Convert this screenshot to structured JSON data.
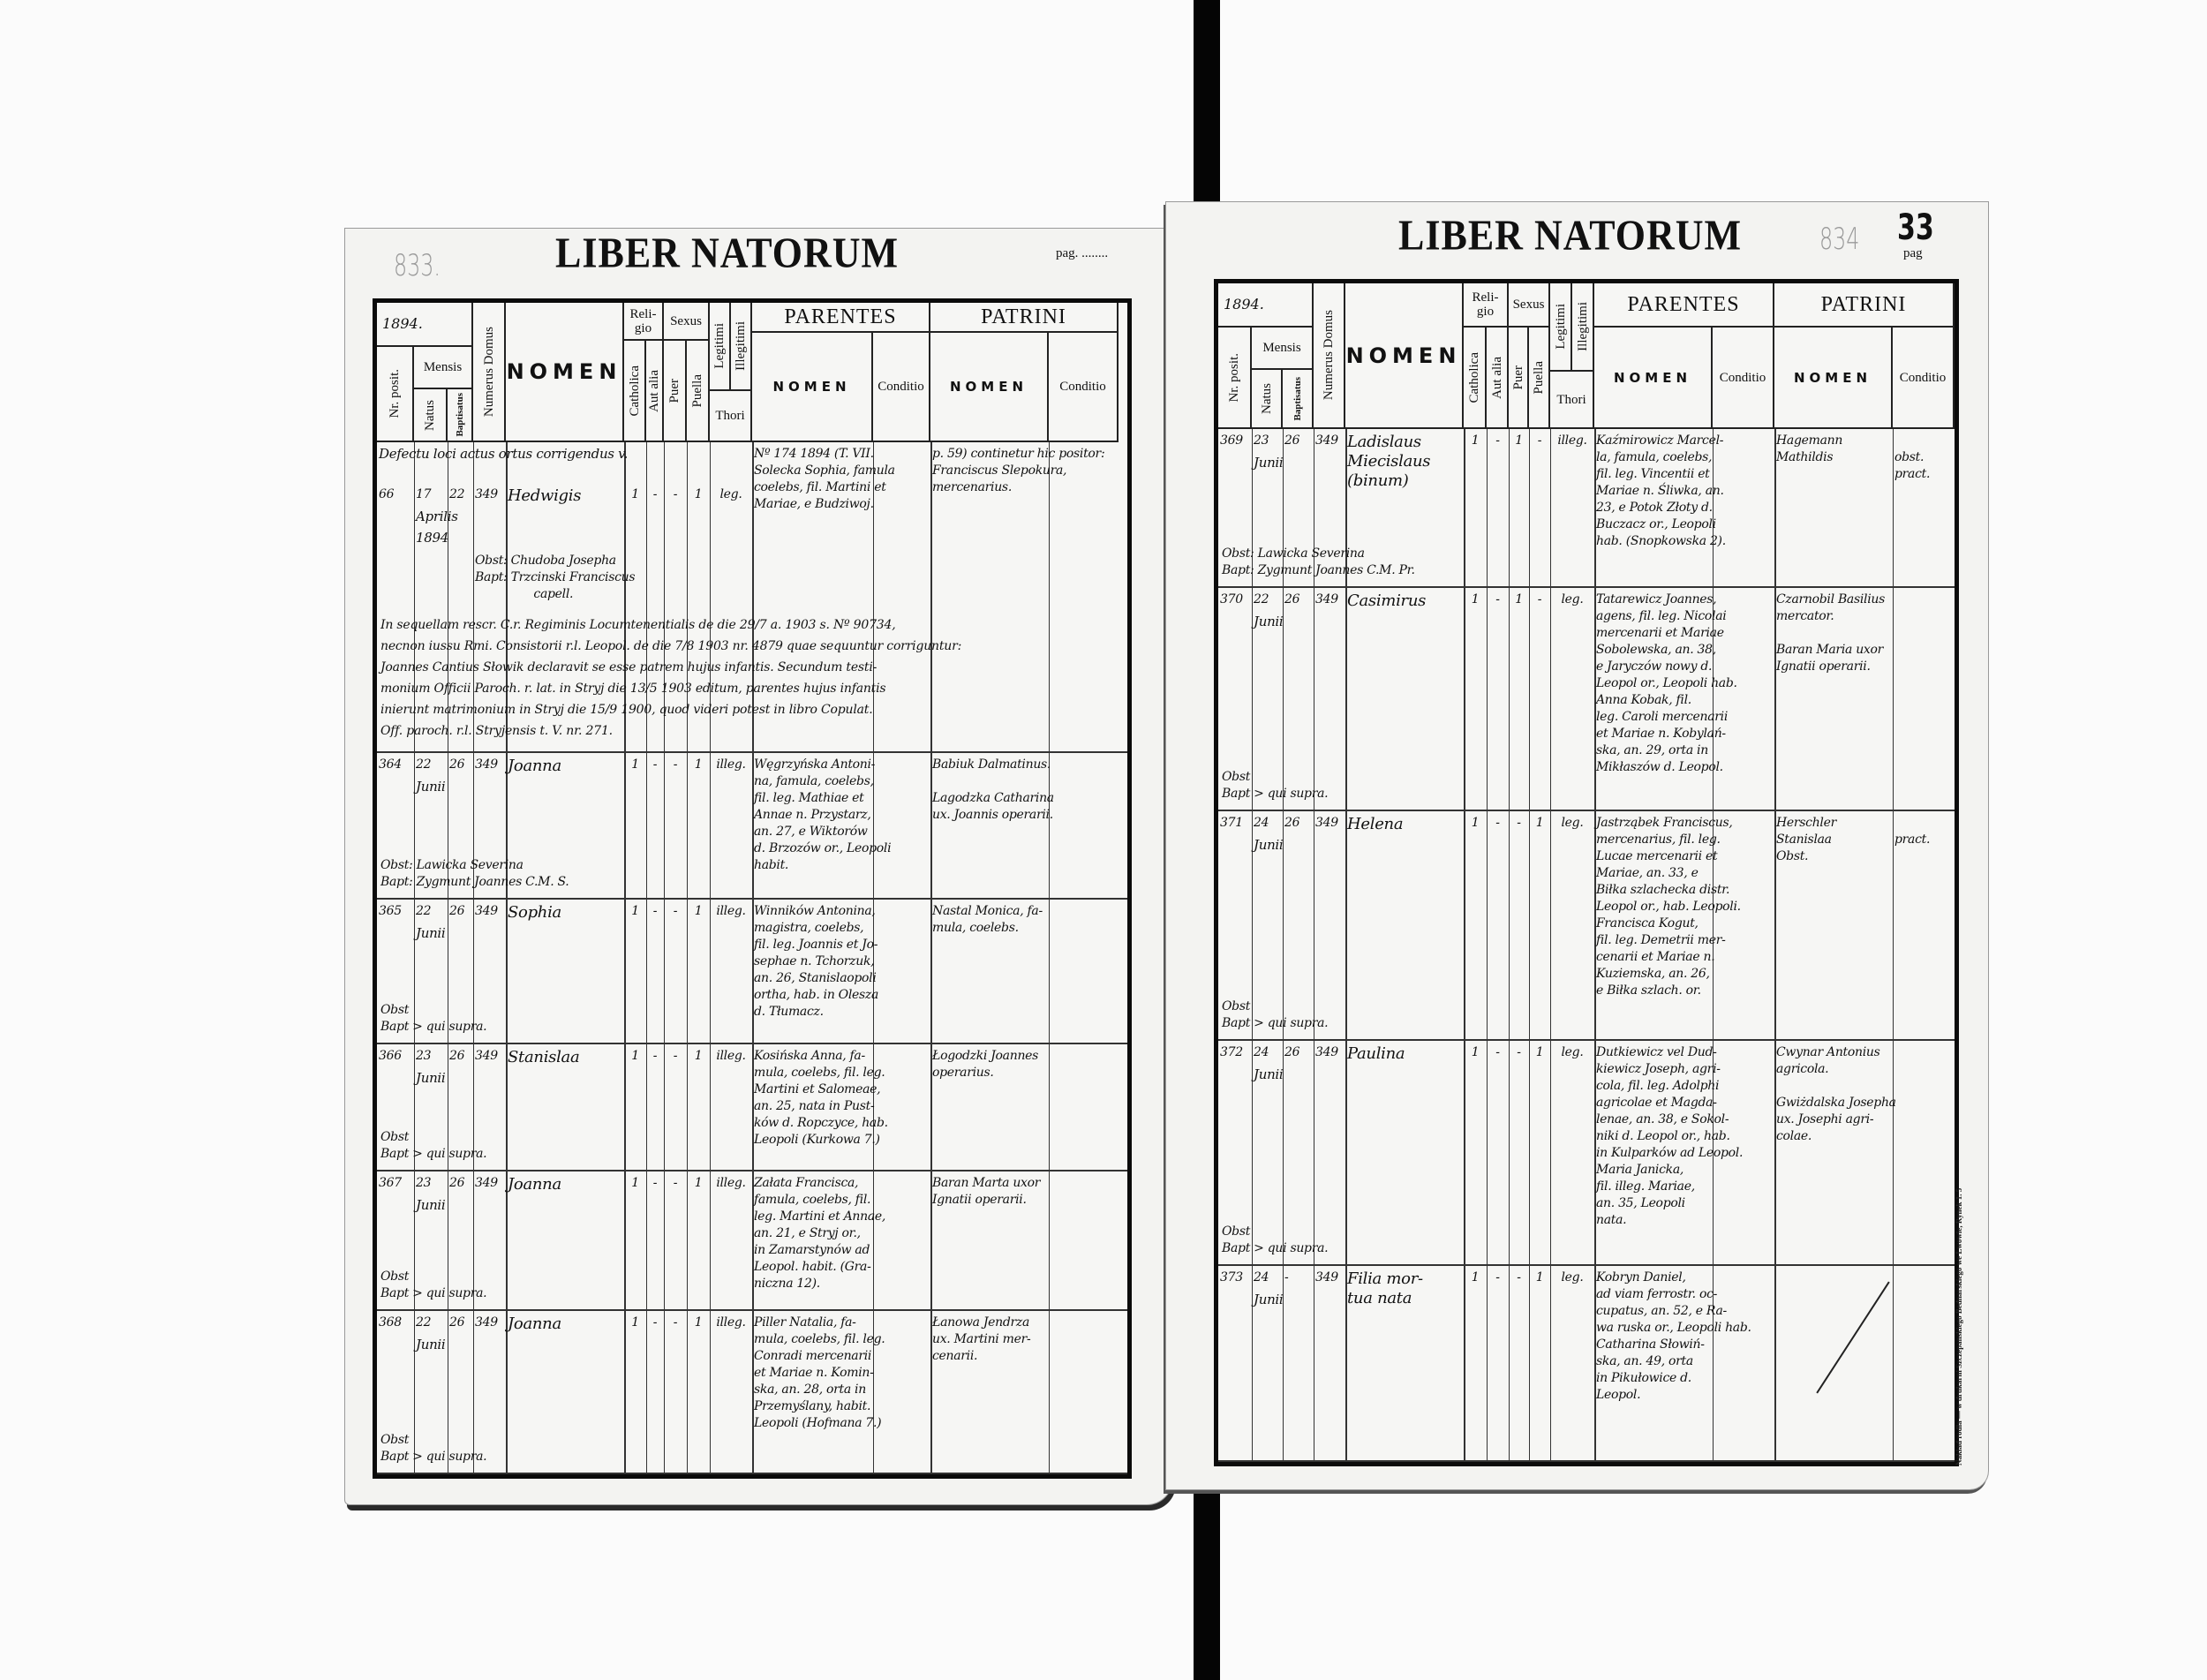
{
  "headers": {
    "title": "LIBER NATORUM",
    "pag": "pag.",
    "year": "1894.",
    "mensis": "Mensis",
    "nr_posit": "Nr. posit.",
    "natus": "Natus",
    "baptisatus": "Baptisatus",
    "numerus_domus": "Numerus Domus",
    "nomen": "NOMEN",
    "religio": "Reli-\ngio",
    "catholica": "Catholica",
    "aut_alia": "Aut alia",
    "sexus": "Sexus",
    "puer": "Puer",
    "puella": "Puella",
    "legitimi": "Legitimi",
    "illegitimi": "Illegitimi",
    "thori": "Thori",
    "parentes": "PARENTES",
    "patrini": "PATRINI",
    "sub_nomen": "NOMEN",
    "conditio": "Conditio"
  },
  "left_page": {
    "page_number": "833.",
    "pag_suffix": "pag. ........",
    "entries": [
      {
        "nr": "66",
        "first_line": "Defectu loci actus ortus corrigendus v.",
        "natus": "17",
        "baptisatus": "22",
        "month": "Aprilis\n1894",
        "domus": "349",
        "nomen": "Hedwigis",
        "catholica": "1",
        "aut_alia": "-",
        "puer": "-",
        "puella": "1",
        "thori": "leg.",
        "parentes": "Nº 174 1894 (T. VII.\nSolecka Sophia, famula\ncoelebs, fil. Martini et\nMariae, e Budziwoj.",
        "parentes_conditio": "",
        "patrini": "p. 59) continetur hic positor:\nFranciscus Slepokura,\nmercenarius.",
        "patrini_conditio": "",
        "obst_bapt": "Obst: Chudoba Josepha\nBapt: Trzcinski Franciscus\n                capell.",
        "note": "In sequellam rescr. C.r. Regiminis Locumtenentialis de die 29/7 a. 1903 s. Nº 90734,\nnecnon iussu Rmi. Consistorii r.l. Leopol. de die 7/8 1903 nr. 4879 quae sequuntur corriguntur:\nJoannes Cantius Słowik declaravit se esse patrem hujus infantis. Secundum testi-\nmonium Officii Paroch. r. lat. in Stryj die 13/5 1903 editum, parentes hujus infantis\ninierunt matrimonium in Stryj die 15/9 1900, quod videri potest in libro Copulat.\nOff. paroch. r.l. Stryjensis t. V. nr. 271."
      },
      {
        "nr": "364",
        "natus": "22",
        "baptisatus": "26",
        "month": "Junii",
        "domus": "349",
        "nomen": "Joanna",
        "catholica": "1",
        "aut_alia": "-",
        "puer": "-",
        "puella": "1",
        "thori": "illeg.",
        "parentes": "Węgrzyńska Antoni-\nna, famula, coelebs,\nfil. leg. Mathiae et\nAnnae n. Przystarz,\nan. 27, e Wiktorów\nd. Brzozów or., Leopoli\nhabit.",
        "parentes_conditio": "",
        "patrini": "Babiuk Dalmatinus.\n\nLagodzka Catharina\nux. Joannis operarii.",
        "patrini_conditio": "",
        "obst_bapt": "Obst: Lawicka Severina\nBapt: Zygmunt Joannes C.M. S."
      },
      {
        "nr": "365",
        "natus": "22",
        "baptisatus": "26",
        "month": "Junii",
        "domus": "349",
        "nomen": "Sophia",
        "catholica": "1",
        "aut_alia": "-",
        "puer": "-",
        "puella": "1",
        "thori": "illeg.",
        "parentes": "Winników Antonina,\nmagistra, coelebs,\nfil. leg. Joannis et Jo-\nsephae n. Tchorzuk,\nan. 26, Stanislaopoli\northa, hab. in Olesza\nd. Tłumacz.",
        "parentes_conditio": "",
        "patrini": "Nastal Monica, fa-\nmula, coelebs.",
        "patrini_conditio": "",
        "obst_bapt": "Obst\nBapt > qui supra."
      },
      {
        "nr": "366",
        "natus": "23",
        "baptisatus": "26",
        "month": "Junii",
        "domus": "349",
        "nomen": "Stanislaa",
        "catholica": "1",
        "aut_alia": "-",
        "puer": "-",
        "puella": "1",
        "thori": "illeg.",
        "parentes": "Kosińska Anna, fa-\nmula, coelebs, fil. leg.\nMartini et Salomeae,\nan. 25, nata in Pust-\nków d. Ropczyce, hab.\nLeopoli (Kurkowa 7.)",
        "parentes_conditio": "",
        "patrini": "Łogodzki Joannes\noperarius.",
        "patrini_conditio": "",
        "obst_bapt": "Obst\nBapt > qui supra."
      },
      {
        "nr": "367",
        "natus": "23",
        "baptisatus": "26",
        "month": "Junii",
        "domus": "349",
        "nomen": "Joanna",
        "catholica": "1",
        "aut_alia": "-",
        "puer": "-",
        "puella": "1",
        "thori": "illeg.",
        "parentes": "Załata Francisca,\nfamula, coelebs, fil.\nleg. Martini et Annae,\nan. 21, e Stryj or.,\nin Zamarstynów ad\nLeopol. habit. (Gra-\nniczna 12).",
        "parentes_conditio": "",
        "patrini": "Baran Marta uxor\nIgnatii operarii.",
        "patrini_conditio": "",
        "obst_bapt": "Obst\nBapt > qui supra."
      },
      {
        "nr": "368",
        "natus": "22",
        "baptisatus": "26",
        "month": "Junii",
        "domus": "349",
        "nomen": "Joanna",
        "catholica": "1",
        "aut_alia": "-",
        "puer": "-",
        "puella": "1",
        "thori": "illeg.",
        "parentes": "Piller Natalia, fa-\nmula, coelebs, fil. leg.\nConradi mercenarii\net Mariae n. Komin-\nska, an. 28, orta in\nPrzemyślany, habit.\nLeopoli (Hofmana 7.)",
        "parentes_conditio": "",
        "patrini": "Łanowa Jendrza\nux. Martini mer-\ncenarii.",
        "patrini_conditio": "",
        "obst_bapt": "Obst\nBapt > qui supra."
      }
    ]
  },
  "right_page": {
    "page_number_old": "834",
    "page_number": "33",
    "pag_suffix": "pag",
    "imprint": "Nakład rodła — w drukarni Szczepanskiego Bednarskiego we Lwowie, Rynek 1. 5",
    "entries": [
      {
        "nr": "369",
        "natus": "23",
        "baptisatus": "26",
        "month": "Junii",
        "domus": "349",
        "nomen": "Ladislaus\nMiecislaus\n(binum)",
        "catholica": "1",
        "aut_alia": "-",
        "puer": "1",
        "puella": "-",
        "thori": "illeg.",
        "parentes": "Kaźmirowicz Marcel-\nla, famula, coelebs,\nfil. leg. Vincentii et\nMariae n. Śliwka, an.\n23, e Potok Złoty d.\nBuczacz or., Leopoli\nhab. (Snopkowska 2).",
        "parentes_conditio": "",
        "patrini": "Hagemann\nMathildis",
        "patrini_conditio": "\nobst.\npract.",
        "obst_bapt": "Obst: Lawicka Severina\nBapt: Zygmunt Joannes C.M. Pr."
      },
      {
        "nr": "370",
        "natus": "22",
        "baptisatus": "26",
        "month": "Junii",
        "domus": "349",
        "nomen": "Casimirus",
        "catholica": "1",
        "aut_alia": "-",
        "puer": "1",
        "puella": "-",
        "thori": "leg.",
        "parentes": "Tatarewicz Joannes,\nagens, fil. leg. Nicolai\nmercenarii et Mariae\nSobolewska, an. 38,\ne Jaryczów nowy d.\nLeopol or., Leopoli hab.\n   Anna Kobak, fil.\nleg. Caroli mercenarii\net Mariae n. Kobylań-\nska, an. 29, orta in\nMikłaszów d. Leopol.",
        "parentes_conditio": "",
        "patrini": "Czarnobil Basilius\nmercator.\n\nBaran Maria uxor\nIgnatii operarii.",
        "patrini_conditio": "",
        "obst_bapt": "Obst\nBapt > qui supra."
      },
      {
        "nr": "371",
        "natus": "24",
        "baptisatus": "26",
        "month": "Junii",
        "domus": "349",
        "nomen": "Helena",
        "catholica": "1",
        "aut_alia": "-",
        "puer": "-",
        "puella": "1",
        "thori": "leg.",
        "parentes": "Jastrząbek Franciscus,\nmercenarius, fil. leg.\nLucae mercenarii et\nMariae, an. 33, e\nBiłka szlachecka distr.\nLeopol or., hab. Leopoli.\n   Francisca Kogut,\nfil. leg. Demetrii mer-\ncenarii et Mariae n.\nKuziemska, an. 26,\ne Biłka szlach. or.",
        "parentes_conditio": "",
        "patrini": "Herschler Stanislaa\nObst.",
        "patrini_conditio": "\npract.",
        "obst_bapt": "Obst\nBapt > qui supra."
      },
      {
        "nr": "372",
        "natus": "24",
        "baptisatus": "26",
        "month": "Junii",
        "domus": "349",
        "nomen": "Paulina",
        "catholica": "1",
        "aut_alia": "-",
        "puer": "-",
        "puella": "1",
        "thori": "leg.",
        "parentes": "Dutkiewicz vel Dud-\nkiewicz Joseph, agri-\ncola, fil. leg. Adolphi\nagricolae et Magda-\nlenae, an. 38, e Sokol-\nniki d. Leopol or., hab.\nin Kulparków ad Leopol.\n   Maria Janicka,\nfil. illeg. Mariae,\nan. 35, Leopoli\nnata.",
        "parentes_conditio": "",
        "patrini": "Cwynar Antonius\nagricola.\n\nGwiżdalska Josepha\nux. Josephi agri-\ncolae.",
        "patrini_conditio": "",
        "obst_bapt": "Obst\nBapt > qui supra."
      },
      {
        "nr": "373",
        "natus": "24",
        "baptisatus": "-",
        "month": "Junii",
        "domus": "349",
        "nomen": "Filia mor-\ntua nata",
        "catholica": "1",
        "aut_alia": "-",
        "puer": "-",
        "puella": "1",
        "thori": "leg.",
        "parentes": "Kobryn Daniel,\nad viam ferrostr. oc-\ncupatus, an. 52, e Ra-\nwa ruska or., Leopoli hab.\n   Catharina Słowiń-\nska, an. 49, orta\nin Pikułowice d.\nLeopol.",
        "parentes_conditio": "",
        "patrini": "",
        "patrini_conditio": "",
        "obst_bapt": ""
      }
    ]
  }
}
